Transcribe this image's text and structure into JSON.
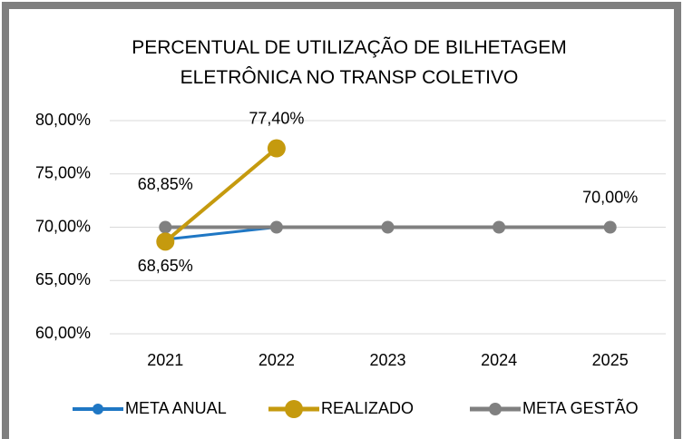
{
  "chart_data": {
    "type": "line",
    "title": "PERCENTUAL DE UTILIZAÇÃO DE BILHETAGEM ELETRÔNICA NO TRANSP COLETIVO",
    "categories": [
      "2021",
      "2022",
      "2023",
      "2024",
      "2025"
    ],
    "series": [
      {
        "name": "META ANUAL",
        "color": "#1f77c4",
        "values": [
          68.85,
          70,
          70,
          70,
          70
        ],
        "value_labels": [
          "68,85%",
          null,
          null,
          null,
          null
        ]
      },
      {
        "name": "REALIZADO",
        "color": "#c59a0e",
        "values": [
          68.65,
          77.4,
          null,
          null,
          null
        ],
        "value_labels": [
          "68,65%",
          "77,40%",
          null,
          null,
          null
        ]
      },
      {
        "name": "META GESTÃO",
        "color": "#808080",
        "values": [
          70,
          70,
          70,
          70,
          70
        ],
        "value_labels": [
          null,
          null,
          null,
          null,
          "70,00%"
        ]
      }
    ],
    "ylim": [
      60,
      80
    ],
    "yticks": [
      {
        "value": 60,
        "label": "60,00%"
      },
      {
        "value": 65,
        "label": "65,00%"
      },
      {
        "value": 70,
        "label": "70,00%"
      },
      {
        "value": 75,
        "label": "75,00%"
      },
      {
        "value": 80,
        "label": "80,00%"
      }
    ],
    "grid": true,
    "legend": "bottom"
  }
}
